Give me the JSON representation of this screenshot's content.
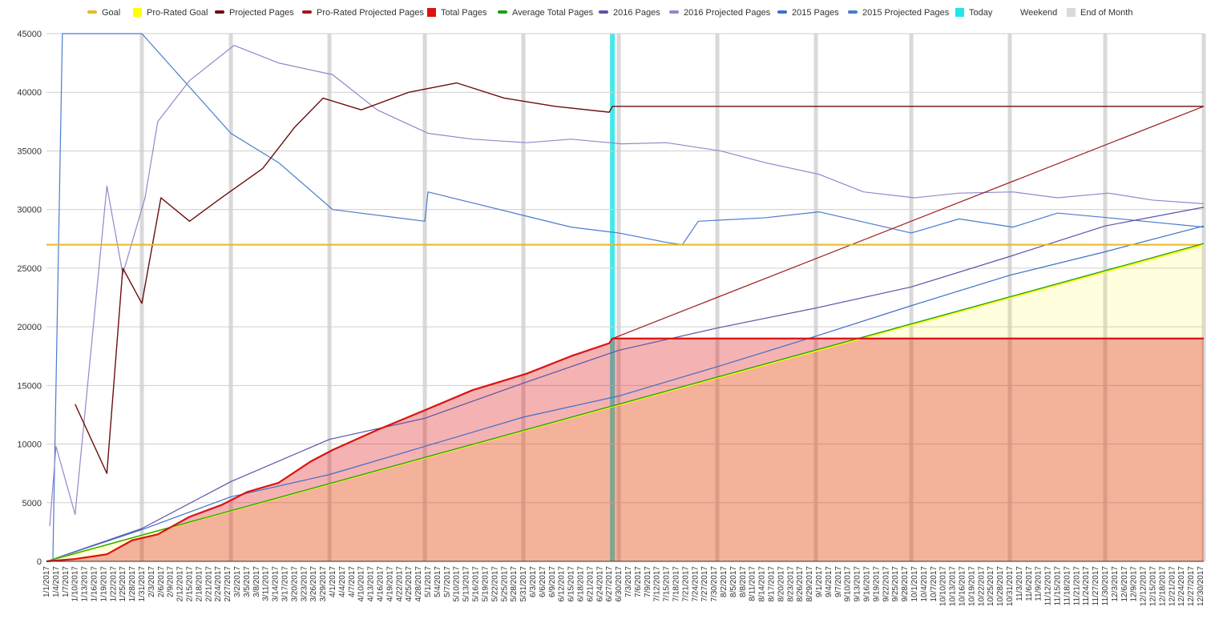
{
  "chart_data": {
    "type": "line",
    "title": "",
    "xlabel": "",
    "ylabel": "",
    "ylim": [
      0,
      45000
    ],
    "yticks": [
      0,
      5000,
      10000,
      15000,
      20000,
      25000,
      30000,
      35000,
      40000,
      45000
    ],
    "x_start": "2017-01-01",
    "x_end": "2017-12-31",
    "x_tick_step_days": 3,
    "x_tick_format": "M/D/YYYY",
    "today": "2017-06-28",
    "grid": true,
    "legend_position": "top",
    "legend": [
      {
        "key": "goal",
        "label": "Goal",
        "color": "#e8b923",
        "shape": "line"
      },
      {
        "key": "prorated_goal",
        "label": "Pro-Rated Goal",
        "color": "#ffff00",
        "shape": "square"
      },
      {
        "key": "projected",
        "label": "Projected Pages",
        "color": "#6b0f0f",
        "shape": "line"
      },
      {
        "key": "prorated_projected",
        "label": "Pro-Rated Projected Pages",
        "color": "#a11a1a",
        "shape": "line"
      },
      {
        "key": "total",
        "label": "Total Pages",
        "color": "#dd1111",
        "shape": "square"
      },
      {
        "key": "average_total",
        "label": "Average Total Pages",
        "color": "#1a9e1a",
        "shape": "line"
      },
      {
        "key": "p2016",
        "label": "2016 Pages",
        "color": "#5c52a8",
        "shape": "line"
      },
      {
        "key": "p2016_projected",
        "label": "2016 Projected Pages",
        "color": "#9088cc",
        "shape": "line"
      },
      {
        "key": "p2015",
        "label": "2015 Pages",
        "color": "#3f6fc7",
        "shape": "line"
      },
      {
        "key": "p2015_projected",
        "label": "2015 Projected Pages",
        "color": "#4a7bd0",
        "shape": "line"
      },
      {
        "key": "today",
        "label": "Today",
        "color": "#22e5e5",
        "shape": "square"
      },
      {
        "key": "weekend",
        "label": "Weekend",
        "color": "#ffffff",
        "shape": "none"
      },
      {
        "key": "end_of_month",
        "label": "End of Month",
        "color": "#d9d9d9",
        "shape": "square"
      }
    ],
    "series": [
      {
        "key": "goal",
        "x": [
          "2017-01-01",
          "2017-12-31"
        ],
        "y": [
          27000,
          27000
        ]
      },
      {
        "key": "prorated_goal",
        "x": [
          "2017-01-01",
          "2017-12-31"
        ],
        "y": [
          0,
          27000
        ]
      },
      {
        "key": "average_total",
        "x": [
          "2017-01-01",
          "2017-12-31"
        ],
        "y": [
          0,
          27100
        ]
      },
      {
        "key": "total",
        "x": [
          "2017-01-01",
          "2017-01-10",
          "2017-01-20",
          "2017-01-28",
          "2017-02-05",
          "2017-02-15",
          "2017-02-25",
          "2017-03-05",
          "2017-03-15",
          "2017-03-25",
          "2017-04-01",
          "2017-04-15",
          "2017-05-01",
          "2017-05-15",
          "2017-06-01",
          "2017-06-15",
          "2017-06-27",
          "2017-06-28",
          "2017-12-31"
        ],
        "y": [
          0,
          200,
          600,
          1800,
          2300,
          3800,
          4800,
          5900,
          6700,
          8500,
          9500,
          11200,
          13000,
          14600,
          16000,
          17500,
          18600,
          19000,
          19000
        ]
      },
      {
        "key": "prorated_projected",
        "x": [
          "2017-06-28",
          "2017-12-31"
        ],
        "y": [
          19000,
          38800
        ]
      },
      {
        "key": "projected",
        "x": [
          "2017-01-10",
          "2017-01-20",
          "2017-01-25",
          "2017-01-31",
          "2017-02-06",
          "2017-02-15",
          "2017-02-25",
          "2017-03-10",
          "2017-03-20",
          "2017-03-29",
          "2017-04-10",
          "2017-04-25",
          "2017-05-10",
          "2017-05-25",
          "2017-06-10",
          "2017-06-27",
          "2017-06-28",
          "2017-12-31"
        ],
        "y": [
          13400,
          7500,
          25000,
          22000,
          31000,
          29000,
          31000,
          33500,
          37000,
          39500,
          38500,
          40000,
          40800,
          39500,
          38800,
          38300,
          38800,
          38800
        ]
      },
      {
        "key": "p2016",
        "x": [
          "2017-01-01",
          "2017-01-31",
          "2017-02-28",
          "2017-03-31",
          "2017-04-30",
          "2017-05-31",
          "2017-06-30",
          "2017-07-31",
          "2017-08-31",
          "2017-09-30",
          "2017-10-31",
          "2017-11-30",
          "2017-12-31"
        ],
        "y": [
          0,
          2800,
          6800,
          10400,
          12200,
          15200,
          18000,
          19900,
          21600,
          23400,
          26000,
          28600,
          30200
        ]
      },
      {
        "key": "p2016_projected",
        "x": [
          "2017-01-02",
          "2017-01-04",
          "2017-01-10",
          "2017-01-20",
          "2017-01-25",
          "2017-02-01",
          "2017-02-05",
          "2017-02-15",
          "2017-03-01",
          "2017-03-15",
          "2017-04-01",
          "2017-04-15",
          "2017-05-01",
          "2017-05-15",
          "2017-06-01",
          "2017-06-15",
          "2017-07-01",
          "2017-07-15",
          "2017-08-01",
          "2017-08-15",
          "2017-09-01",
          "2017-09-15",
          "2017-10-01",
          "2017-10-15",
          "2017-11-01",
          "2017-11-15",
          "2017-12-01",
          "2017-12-15",
          "2017-12-31"
        ],
        "y": [
          3000,
          9800,
          4000,
          32000,
          24500,
          31000,
          37500,
          41000,
          44000,
          42500,
          41500,
          38500,
          36500,
          36000,
          35700,
          36000,
          35600,
          35700,
          35000,
          34000,
          33000,
          31500,
          31000,
          31400,
          31500,
          31000,
          31400,
          30800,
          30500
        ]
      },
      {
        "key": "p2015",
        "x": [
          "2017-01-01",
          "2017-01-31",
          "2017-02-28",
          "2017-03-31",
          "2017-04-30",
          "2017-05-31",
          "2017-06-30",
          "2017-07-31",
          "2017-08-31",
          "2017-09-30",
          "2017-10-31",
          "2017-11-30",
          "2017-12-31"
        ],
        "y": [
          0,
          2700,
          5500,
          7400,
          9800,
          12300,
          14100,
          16600,
          19200,
          21800,
          24400,
          26400,
          28600
        ]
      },
      {
        "key": "p2015_projected",
        "x": [
          "2017-01-03",
          "2017-01-06",
          "2017-01-31",
          "2017-02-28",
          "2017-03-15",
          "2017-04-01",
          "2017-04-30",
          "2017-05-01",
          "2017-05-31",
          "2017-06-15",
          "2017-06-30",
          "2017-07-15",
          "2017-07-20",
          "2017-07-25",
          "2017-08-15",
          "2017-09-01",
          "2017-09-30",
          "2017-10-15",
          "2017-11-01",
          "2017-11-15",
          "2017-12-01",
          "2017-12-31"
        ],
        "y": [
          0,
          45000,
          45000,
          36500,
          34000,
          30000,
          29000,
          31500,
          29500,
          28500,
          28000,
          27200,
          27000,
          29000,
          29300,
          29800,
          28000,
          29200,
          28500,
          29700,
          29300,
          28500
        ]
      }
    ]
  }
}
